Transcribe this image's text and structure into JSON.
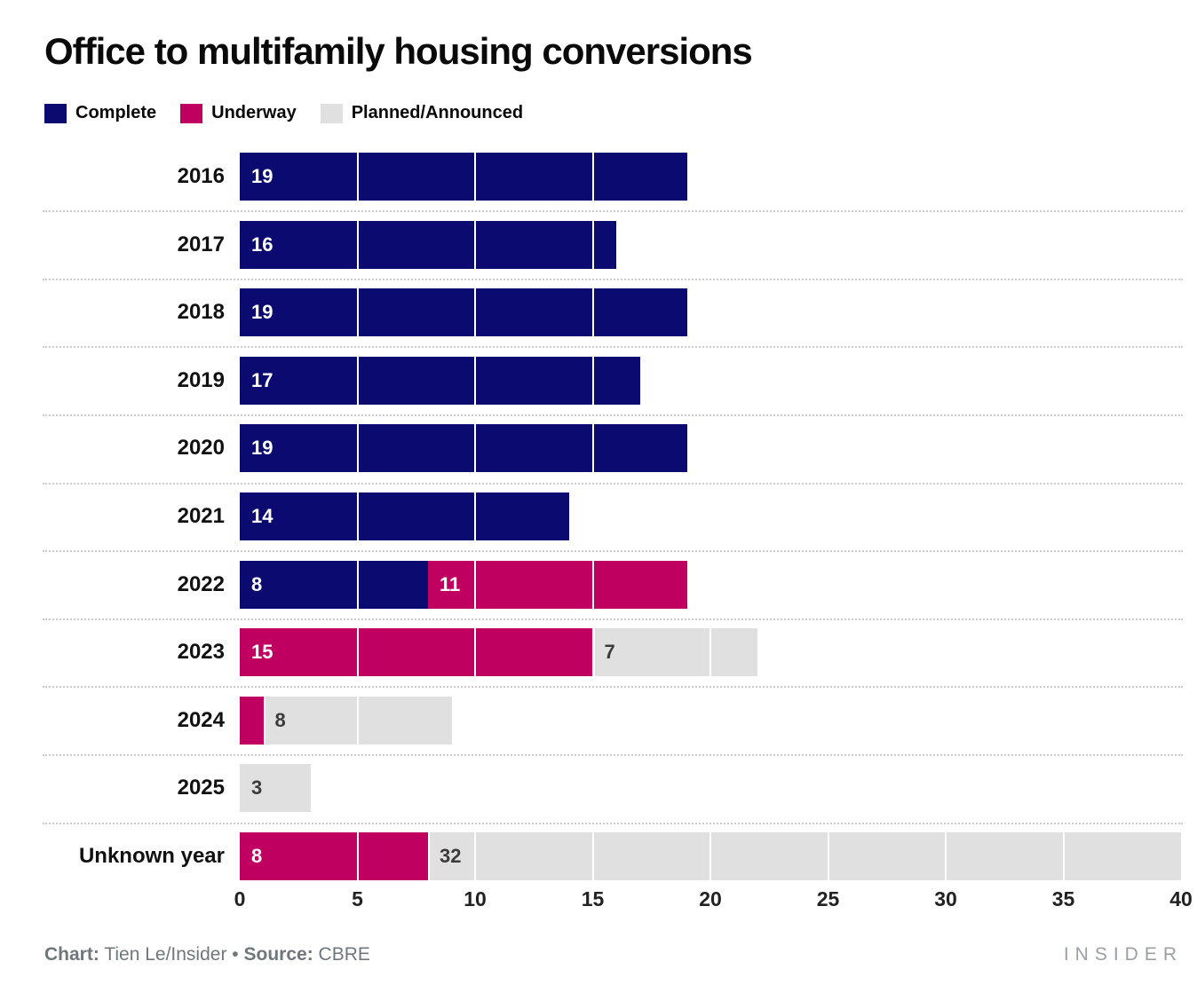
{
  "title": "Office to multifamily housing conversions",
  "legend": [
    {
      "label": "Complete",
      "color": "#0a0a70"
    },
    {
      "label": "Underway",
      "color": "#c00061"
    },
    {
      "label": "Planned/Announced",
      "color": "#e0e0e0"
    }
  ],
  "chart_data": {
    "type": "bar",
    "orientation": "horizontal",
    "stacked": true,
    "title": "Office to multifamily housing conversions",
    "categories": [
      "2016",
      "2017",
      "2018",
      "2019",
      "2020",
      "2021",
      "2022",
      "2023",
      "2024",
      "2025",
      "Unknown year"
    ],
    "series": [
      {
        "name": "Complete",
        "color": "#0a0a70",
        "values": [
          19,
          16,
          19,
          17,
          19,
          14,
          8,
          0,
          0,
          0,
          0
        ]
      },
      {
        "name": "Underway",
        "color": "#c00061",
        "values": [
          0,
          0,
          0,
          0,
          0,
          0,
          11,
          15,
          1,
          0,
          8
        ]
      },
      {
        "name": "Planned/Announced",
        "color": "#e0e0e0",
        "values": [
          0,
          0,
          0,
          0,
          0,
          0,
          0,
          7,
          8,
          3,
          32
        ]
      }
    ],
    "bar_labels": [
      [
        "19"
      ],
      [
        "16"
      ],
      [
        "19"
      ],
      [
        "17"
      ],
      [
        "19"
      ],
      [
        "14"
      ],
      [
        "8",
        "11"
      ],
      [
        "15",
        "7"
      ],
      [
        null,
        "8"
      ],
      [
        "3"
      ],
      [
        "8",
        "32"
      ]
    ],
    "xlim": [
      0,
      40
    ],
    "x_ticks": [
      0,
      5,
      10,
      15,
      20,
      25,
      30,
      35,
      40
    ],
    "grid": "white vertical lines every 5 units over bars",
    "legend_position": "top-left",
    "label_color_on_dark": "#ffffff",
    "label_color_on_light": "#3b3b3b"
  },
  "footer": {
    "credit_chart_label": "Chart:",
    "credit_chart_value": "Tien Le/Insider",
    "separator": "•",
    "credit_source_label": "Source:",
    "credit_source_value": "CBRE",
    "brand": "I N S I D E R"
  }
}
